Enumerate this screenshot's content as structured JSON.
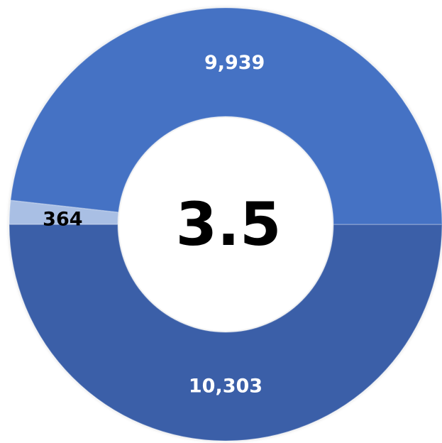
{
  "chart_data": {
    "type": "pie",
    "variant": "donut",
    "center_label": "3.5",
    "slices": [
      {
        "value": 10303,
        "display": "10,303",
        "color": "#3a5fa8",
        "label_color": "#ffffff"
      },
      {
        "value": 9939,
        "display": "9,939",
        "color": "#4472c4",
        "label_color": "#ffffff"
      },
      {
        "value": 364,
        "display": "364",
        "color": "#a9bfe4",
        "label_color": "#000000"
      }
    ],
    "legend": "none"
  }
}
